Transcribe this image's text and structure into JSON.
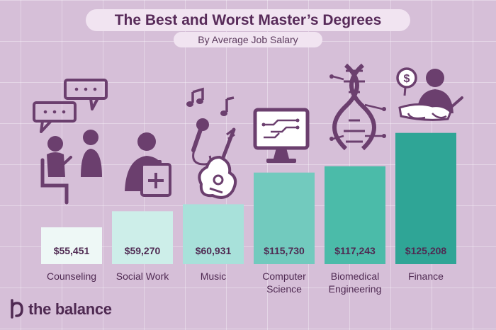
{
  "title": "The Best and Worst Master’s Degrees",
  "subtitle": "By Average Job Salary",
  "brand": "the balance",
  "colors": {
    "background": "#d6bfd8",
    "text": "#4f2a52",
    "icons": "#6b3f6e",
    "bars": [
      "#eef8f6",
      "#cdeee9",
      "#a8e1da",
      "#72cabe",
      "#4bbba9",
      "#2fa596"
    ]
  },
  "chart_data": {
    "type": "bar",
    "title": "The Best and Worst Master’s Degrees",
    "subtitle": "By Average Job Salary",
    "categories": [
      "Counseling",
      "Social Work",
      "Music",
      "Computer\nScience",
      "Biomedical\nEngineering",
      "Finance"
    ],
    "values": [
      55451,
      59270,
      60931,
      115730,
      117243,
      125208
    ],
    "value_labels": [
      "$55,451",
      "$59,270",
      "$60,931",
      "$115,730",
      "$117,243",
      "$125,208"
    ],
    "icons": [
      "counseling-people-icon",
      "social-worker-clipboard-icon",
      "music-guitar-microphone-icon",
      "computer-monitor-icon",
      "dna-helix-icon",
      "finance-person-money-icon"
    ],
    "xlabel": "",
    "ylabel": "",
    "grid": false,
    "legend": "none"
  }
}
